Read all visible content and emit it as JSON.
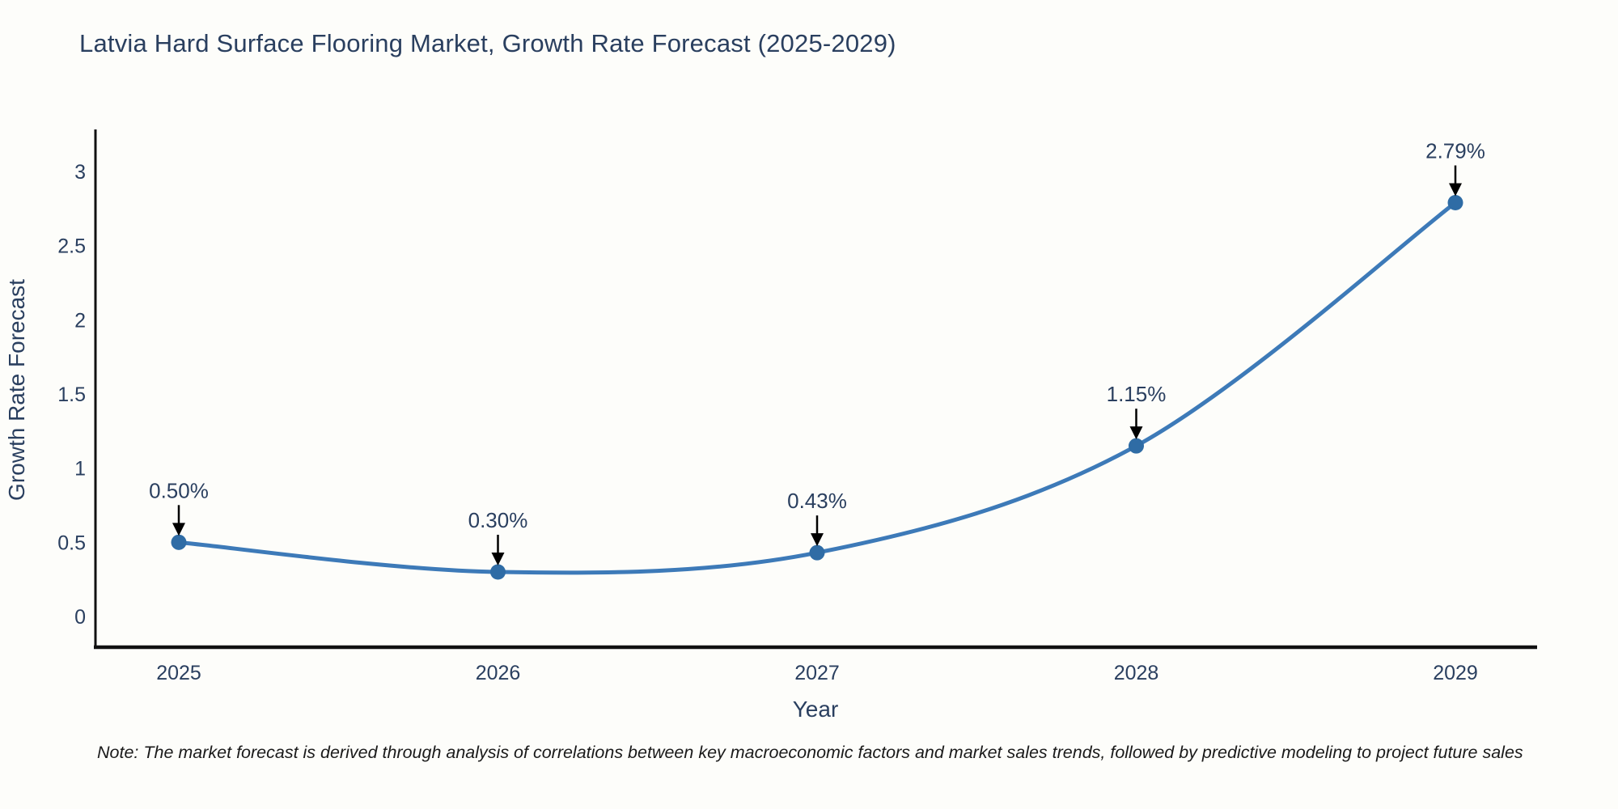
{
  "title": "Latvia Hard Surface Flooring Market, Growth Rate Forecast (2025-2029)",
  "note": "Note: The market forecast is derived through analysis of correlations between key macroeconomic factors and market sales trends, followed by predictive modeling to project future sales",
  "chart_data": {
    "type": "line",
    "title": "Latvia Hard Surface Flooring Market, Growth Rate Forecast (2025-2029)",
    "xlabel": "Year",
    "ylabel": "Growth Rate Forecast",
    "x": [
      2025,
      2026,
      2027,
      2028,
      2029
    ],
    "values": [
      0.5,
      0.3,
      0.43,
      1.15,
      2.79
    ],
    "point_labels": [
      "0.50%",
      "0.30%",
      "0.43%",
      "1.15%",
      "2.79%"
    ],
    "xtick_labels": [
      "2025",
      "2026",
      "2027",
      "2028",
      "2029"
    ],
    "yticks": [
      0,
      0.5,
      1,
      1.5,
      2,
      2.5,
      3
    ],
    "ytick_labels": [
      "0",
      "0.5",
      "1",
      "1.5",
      "2",
      "2.5",
      "3"
    ],
    "ylim": [
      -0.21,
      3.28
    ],
    "line_shape": "spline",
    "grid": false,
    "legend": "none",
    "annotation_style": "black-down-arrow",
    "colors": {
      "line": "#3d7ab8",
      "marker": "#2f6ca5",
      "arrow": "#000000",
      "axis": "#111111",
      "tick_text": "#2a3f5f",
      "label_text": "#2a3f5f",
      "annotation_text": "#2a3f5f",
      "note_text": "#1a1a1a",
      "background": "#fdfdfa"
    }
  }
}
